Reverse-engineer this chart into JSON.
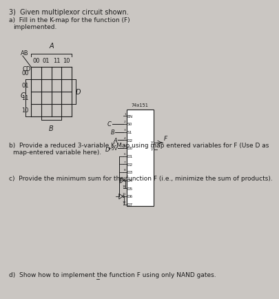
{
  "bg_color": "#cac6c2",
  "text_color": "#1a1a1a",
  "title": "3)  Given multiplexor circuit shown.",
  "part_a": "a)  Fill in the K-map for the function (F)\n    implemented.",
  "part_b": "b)  Provide a reduced 3-variable K-Map using map entered variables for F (Use D as\n    map-entered variable here).",
  "part_c": "c)  Provide the minimum sum for the function F (i.e., minimize the sum of products).",
  "part_d": "d)  Show how to implement the function F using only NAND gates.",
  "kmap_col_labels": [
    "00",
    "01",
    "11",
    "10"
  ],
  "kmap_row_labels": [
    "00",
    "01",
    "11",
    "10"
  ],
  "mux_label": "74x151",
  "mux_pin_labels": [
    "EN",
    "S0",
    "S1",
    "D2",
    "D0",
    "D1",
    "D2",
    "D3",
    "D4",
    "D5",
    "D6",
    "D7"
  ]
}
